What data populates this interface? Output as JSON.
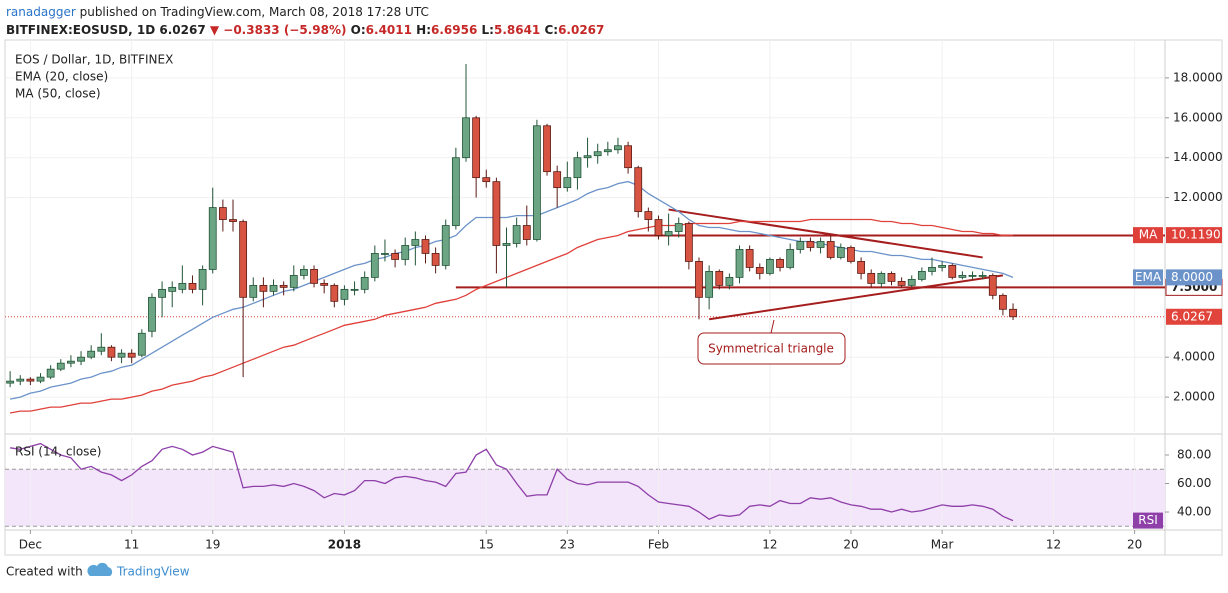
{
  "header": {
    "author": "ranadagger",
    "published": " published on TradingView.com, March 08, 2018 17:28 UTC",
    "symbol": "BITFINEX:EOSUSD, 1D",
    "last": "6.0267",
    "change": "▼ −0.3833 (−5.98%)",
    "ohlc": [
      {
        "label": "O:",
        "value": "6.4011"
      },
      {
        "label": "H:",
        "value": "6.6956"
      },
      {
        "label": "L:",
        "value": "5.8641"
      },
      {
        "label": "C:",
        "value": "6.0267"
      }
    ]
  },
  "footer": {
    "created": "Created with",
    "brand": "TradingView"
  },
  "chart_data": {
    "type": "candlestick",
    "title": "EOS / Dollar, 1D, BITFINEX",
    "x": [
      "2017-11-29",
      "2017-11-30",
      "2017-12-01",
      "2017-12-02",
      "2017-12-03",
      "2017-12-04",
      "2017-12-05",
      "2017-12-06",
      "2017-12-07",
      "2017-12-08",
      "2017-12-09",
      "2017-12-10",
      "2017-12-11",
      "2017-12-12",
      "2017-12-13",
      "2017-12-14",
      "2017-12-15",
      "2017-12-16",
      "2017-12-17",
      "2017-12-18",
      "2017-12-19",
      "2017-12-20",
      "2017-12-21",
      "2017-12-22",
      "2017-12-23",
      "2017-12-24",
      "2017-12-25",
      "2017-12-26",
      "2017-12-27",
      "2017-12-28",
      "2017-12-29",
      "2017-12-30",
      "2017-12-31",
      "2018-01-01",
      "2018-01-02",
      "2018-01-03",
      "2018-01-04",
      "2018-01-05",
      "2018-01-06",
      "2018-01-07",
      "2018-01-08",
      "2018-01-09",
      "2018-01-10",
      "2018-01-11",
      "2018-01-12",
      "2018-01-13",
      "2018-01-14",
      "2018-01-15",
      "2018-01-16",
      "2018-01-17",
      "2018-01-18",
      "2018-01-19",
      "2018-01-20",
      "2018-01-21",
      "2018-01-22",
      "2018-01-23",
      "2018-01-24",
      "2018-01-25",
      "2018-01-26",
      "2018-01-27",
      "2018-01-28",
      "2018-01-29",
      "2018-01-30",
      "2018-01-31",
      "2018-02-01",
      "2018-02-02",
      "2018-02-03",
      "2018-02-04",
      "2018-02-05",
      "2018-02-06",
      "2018-02-07",
      "2018-02-08",
      "2018-02-09",
      "2018-02-10",
      "2018-02-11",
      "2018-02-12",
      "2018-02-13",
      "2018-02-14",
      "2018-02-15",
      "2018-02-16",
      "2018-02-17",
      "2018-02-18",
      "2018-02-19",
      "2018-02-20",
      "2018-02-21",
      "2018-02-22",
      "2018-02-23",
      "2018-02-24",
      "2018-02-25",
      "2018-02-26",
      "2018-02-27",
      "2018-02-28",
      "2018-03-01",
      "2018-03-02",
      "2018-03-03",
      "2018-03-04",
      "2018-03-05",
      "2018-03-06",
      "2018-03-07",
      "2018-03-08"
    ],
    "open": [
      2.7,
      2.8,
      2.9,
      2.8,
      3.0,
      3.4,
      3.7,
      3.8,
      4.0,
      4.3,
      4.5,
      4.0,
      4.2,
      4.1,
      5.3,
      7.0,
      7.3,
      7.4,
      7.7,
      7.4,
      8.4,
      11.5,
      10.9,
      10.8,
      7.0,
      7.6,
      7.3,
      7.6,
      7.5,
      8.1,
      8.4,
      7.7,
      7.6,
      6.9,
      7.4,
      7.4,
      8.0,
      9.2,
      9.2,
      8.9,
      9.6,
      9.9,
      9.2,
      8.6,
      10.6,
      14.0,
      16.0,
      13.0,
      12.8,
      9.6,
      9.7,
      10.6,
      9.9,
      15.6,
      13.3,
      12.5,
      13.0,
      14.0,
      14.1,
      14.3,
      14.4,
      14.6,
      13.5,
      11.3,
      10.9,
      10.1,
      10.3,
      10.7,
      8.8,
      7.0,
      8.3,
      7.6,
      8.0,
      9.4,
      8.5,
      8.2,
      8.9,
      8.5,
      9.4,
      9.8,
      9.5,
      9.8,
      9.0,
      9.5,
      8.8,
      8.2,
      7.7,
      8.2,
      7.8,
      7.6,
      7.9,
      8.3,
      8.5,
      8.6,
      8.0,
      8.1,
      8.1,
      8.1,
      7.1,
      6.4011
    ],
    "high": [
      3.3,
      3.1,
      3.0,
      3.2,
      3.6,
      3.9,
      4.1,
      4.3,
      4.6,
      5.2,
      4.6,
      4.4,
      4.4,
      5.4,
      7.2,
      7.8,
      7.8,
      8.6,
      8.1,
      8.6,
      12.5,
      11.9,
      11.9,
      10.9,
      8.0,
      8.0,
      7.9,
      7.8,
      8.6,
      8.6,
      8.6,
      7.9,
      7.7,
      7.6,
      7.8,
      8.3,
      9.6,
      9.9,
      9.4,
      10.0,
      10.3,
      10.1,
      9.5,
      10.9,
      14.5,
      18.7,
      16.1,
      13.4,
      13.0,
      10.5,
      11.0,
      11.6,
      15.9,
      15.7,
      13.6,
      13.8,
      14.3,
      15.0,
      14.7,
      14.8,
      15.0,
      14.8,
      13.6,
      11.5,
      11.1,
      11.2,
      11.0,
      10.8,
      9.0,
      8.6,
      8.4,
      8.2,
      9.6,
      9.6,
      8.7,
      9.0,
      9.0,
      9.7,
      10.0,
      10.0,
      10.0,
      10.1,
      9.7,
      9.6,
      9.0,
      8.4,
      8.3,
      8.3,
      8.0,
      8.1,
      8.5,
      9.0,
      8.8,
      8.7,
      8.3,
      8.3,
      8.3,
      8.2,
      7.2,
      6.6956
    ],
    "low": [
      2.5,
      2.6,
      2.6,
      2.7,
      2.9,
      3.3,
      3.5,
      3.6,
      3.9,
      4.1,
      3.8,
      3.7,
      3.7,
      4.0,
      5.0,
      6.0,
      6.5,
      7.2,
      7.2,
      6.6,
      8.2,
      10.3,
      10.3,
      3.0,
      6.8,
      6.5,
      7.1,
      7.1,
      7.3,
      7.9,
      7.5,
      7.2,
      6.5,
      6.6,
      7.1,
      7.2,
      7.8,
      8.8,
      8.5,
      8.6,
      8.6,
      8.7,
      8.2,
      8.4,
      10.4,
      13.8,
      12.0,
      12.5,
      8.2,
      7.5,
      9.5,
      9.6,
      9.8,
      13.1,
      11.5,
      12.3,
      12.4,
      13.5,
      13.7,
      14.1,
      14.2,
      13.2,
      11.0,
      10.3,
      9.9,
      9.6,
      10.0,
      8.4,
      5.9,
      6.4,
      7.4,
      7.4,
      7.7,
      8.3,
      7.9,
      8.1,
      8.3,
      8.4,
      9.2,
      9.3,
      9.2,
      8.9,
      8.9,
      8.7,
      7.9,
      7.5,
      7.5,
      7.6,
      7.5,
      7.5,
      7.8,
      8.1,
      8.3,
      7.9,
      7.9,
      7.9,
      7.9,
      6.9,
      6.1,
      5.8641
    ],
    "close": [
      2.8,
      2.9,
      2.8,
      3.0,
      3.4,
      3.7,
      3.8,
      4.0,
      4.3,
      4.5,
      4.0,
      4.2,
      4.0,
      5.2,
      7.0,
      7.4,
      7.5,
      7.7,
      7.4,
      8.4,
      11.5,
      10.9,
      10.8,
      7.0,
      7.6,
      7.3,
      7.6,
      7.5,
      8.1,
      8.4,
      7.7,
      7.6,
      6.8,
      7.4,
      7.4,
      8.0,
      9.2,
      9.2,
      8.9,
      9.6,
      9.9,
      9.2,
      8.6,
      10.6,
      14.0,
      16.0,
      13.0,
      12.8,
      9.6,
      9.7,
      10.6,
      9.9,
      15.6,
      13.3,
      12.5,
      13.0,
      14.0,
      14.1,
      14.3,
      14.4,
      14.6,
      13.5,
      11.3,
      10.9,
      10.1,
      10.3,
      10.7,
      8.8,
      7.0,
      8.3,
      7.6,
      8.0,
      9.4,
      8.5,
      8.2,
      8.9,
      8.5,
      9.4,
      9.8,
      9.5,
      9.8,
      9.0,
      9.5,
      8.8,
      8.2,
      7.7,
      8.2,
      7.8,
      7.6,
      7.9,
      8.3,
      8.5,
      8.6,
      8.0,
      8.1,
      8.1,
      8.1,
      7.1,
      6.4,
      6.0267
    ],
    "last_label": "6.0267",
    "up_color": "#6ba583",
    "down_color": "#d75442",
    "up_border": "#225437",
    "down_border": "#5b1a13",
    "last_color": "#e0443a",
    "series": [
      {
        "name": "EMA (20, close)",
        "tag": "EMA",
        "last_label": "8.0000",
        "color": "#6b93c9",
        "values": [
          1.9,
          2.0,
          2.2,
          2.3,
          2.5,
          2.6,
          2.7,
          2.9,
          3.0,
          3.2,
          3.3,
          3.5,
          3.6,
          3.9,
          4.2,
          4.5,
          4.8,
          5.1,
          5.4,
          5.7,
          6.0,
          6.2,
          6.4,
          6.5,
          6.7,
          6.9,
          7.1,
          7.3,
          7.4,
          7.6,
          7.8,
          8.0,
          8.2,
          8.4,
          8.6,
          8.7,
          8.9,
          9.0,
          9.2,
          9.3,
          9.5,
          9.6,
          9.8,
          9.9,
          10.1,
          10.6,
          11.0,
          11.0,
          11.0,
          11.0,
          11.1,
          11.1,
          11.1,
          11.3,
          11.5,
          11.7,
          11.9,
          12.2,
          12.4,
          12.5,
          12.7,
          12.8,
          12.6,
          12.2,
          11.9,
          11.6,
          11.3,
          10.9,
          10.6,
          10.5,
          10.5,
          10.4,
          10.3,
          10.3,
          10.2,
          10.1,
          10.0,
          9.9,
          9.8,
          9.8,
          9.7,
          9.6,
          9.5,
          9.4,
          9.3,
          9.3,
          9.2,
          9.1,
          9.1,
          9.0,
          8.9,
          8.9,
          8.8,
          8.7,
          8.6,
          8.5,
          8.4,
          8.3,
          8.2,
          8.0
        ]
      },
      {
        "name": "MA (50, close)",
        "tag": "MA",
        "last_label": "10.1190",
        "color": "#e0403a",
        "values": [
          1.2,
          1.3,
          1.3,
          1.4,
          1.5,
          1.5,
          1.6,
          1.7,
          1.7,
          1.8,
          1.9,
          1.9,
          2.0,
          2.1,
          2.3,
          2.4,
          2.6,
          2.7,
          2.8,
          3.0,
          3.1,
          3.3,
          3.5,
          3.7,
          3.9,
          4.1,
          4.3,
          4.5,
          4.6,
          4.8,
          5.0,
          5.2,
          5.4,
          5.6,
          5.7,
          5.8,
          5.9,
          6.1,
          6.2,
          6.3,
          6.4,
          6.5,
          6.7,
          6.8,
          6.9,
          7.1,
          7.4,
          7.6,
          7.8,
          8.0,
          8.2,
          8.4,
          8.6,
          8.8,
          9.0,
          9.2,
          9.5,
          9.7,
          9.9,
          10.0,
          10.1,
          10.3,
          10.4,
          10.5,
          10.6,
          10.6,
          10.6,
          10.7,
          10.7,
          10.7,
          10.7,
          10.7,
          10.8,
          10.8,
          10.8,
          10.8,
          10.8,
          10.8,
          10.8,
          10.9,
          10.9,
          10.9,
          10.9,
          10.9,
          10.9,
          10.9,
          10.8,
          10.8,
          10.7,
          10.7,
          10.6,
          10.6,
          10.5,
          10.4,
          10.3,
          10.3,
          10.2,
          10.2,
          10.1,
          10.119
        ]
      },
      {
        "name": "RSI (14, close)",
        "tag": "RSI",
        "axis": "y2",
        "color": "#8e3fa8",
        "values": [
          85,
          84,
          86,
          88,
          84,
          80,
          78,
          70,
          72,
          68,
          66,
          62,
          66,
          72,
          76,
          84,
          86,
          84,
          80,
          82,
          86,
          84,
          82,
          57,
          58,
          58,
          59,
          58,
          60,
          58,
          55,
          50,
          53,
          52,
          55,
          62,
          62,
          60,
          64,
          65,
          64,
          62,
          61,
          58,
          67,
          68,
          80,
          84,
          73,
          70,
          60,
          51,
          52,
          52,
          70,
          63,
          60,
          59,
          61,
          61,
          61,
          61,
          58,
          52,
          47,
          46,
          45,
          44,
          40,
          35,
          38,
          37,
          38,
          44,
          45,
          44,
          48,
          46,
          46,
          50,
          49,
          50,
          47,
          45,
          44,
          42,
          42,
          40,
          42,
          40,
          41,
          43,
          45,
          44,
          44,
          45,
          44,
          42,
          37,
          34
        ]
      }
    ],
    "xlim": [
      "2017-11-28",
      "2018-03-23"
    ],
    "xticks": [
      {
        "value": "2017-12-01",
        "label": "Dec"
      },
      {
        "value": "2017-12-11",
        "label": "11"
      },
      {
        "value": "2017-12-19",
        "label": "19"
      },
      {
        "value": "2018-01-01",
        "label": "2018"
      },
      {
        "value": "2018-01-15",
        "label": "15"
      },
      {
        "value": "2018-01-23",
        "label": "23"
      },
      {
        "value": "2018-02-01",
        "label": "Feb"
      },
      {
        "value": "2018-02-12",
        "label": "12"
      },
      {
        "value": "2018-02-20",
        "label": "20"
      },
      {
        "value": "2018-03-01",
        "label": "Mar"
      },
      {
        "value": "2018-03-12",
        "label": "12"
      },
      {
        "value": "2018-03-20",
        "label": "20"
      }
    ],
    "ylim": [
      0.25,
      19.9
    ],
    "yticks": [
      {
        "value": 2,
        "label": "2.0000"
      },
      {
        "value": 4,
        "label": "4.0000"
      },
      {
        "value": 12,
        "label": "12.0000"
      },
      {
        "value": 14,
        "label": "14.0000"
      },
      {
        "value": 16,
        "label": "16.0000"
      },
      {
        "value": 18,
        "label": "18.0000"
      }
    ],
    "y2lim": [
      27.4,
      92.6
    ],
    "y2ticks": [
      {
        "value": 40,
        "label": "40.00"
      },
      {
        "value": 60,
        "label": "60.00"
      },
      {
        "value": 80,
        "label": "80.00"
      }
    ],
    "rsi_band": [
      30,
      70
    ],
    "grid": true,
    "hlines": [
      {
        "value": 10.1,
        "from": "2018-01-29",
        "color": "#a51d1d"
      },
      {
        "value": 7.5,
        "from": "2018-01-12",
        "label": "7.5000",
        "color": "#a51d1d"
      }
    ],
    "trendlines": [
      {
        "x": [
          "2018-02-02",
          "2018-03-05"
        ],
        "y": [
          11.4,
          9.0
        ],
        "color": "#a51d1d"
      },
      {
        "x": [
          "2018-02-06",
          "2018-03-07"
        ],
        "y": [
          5.9,
          8.1
        ],
        "color": "#a51d1d"
      }
    ],
    "annotation": "Symmetrical triangle"
  }
}
